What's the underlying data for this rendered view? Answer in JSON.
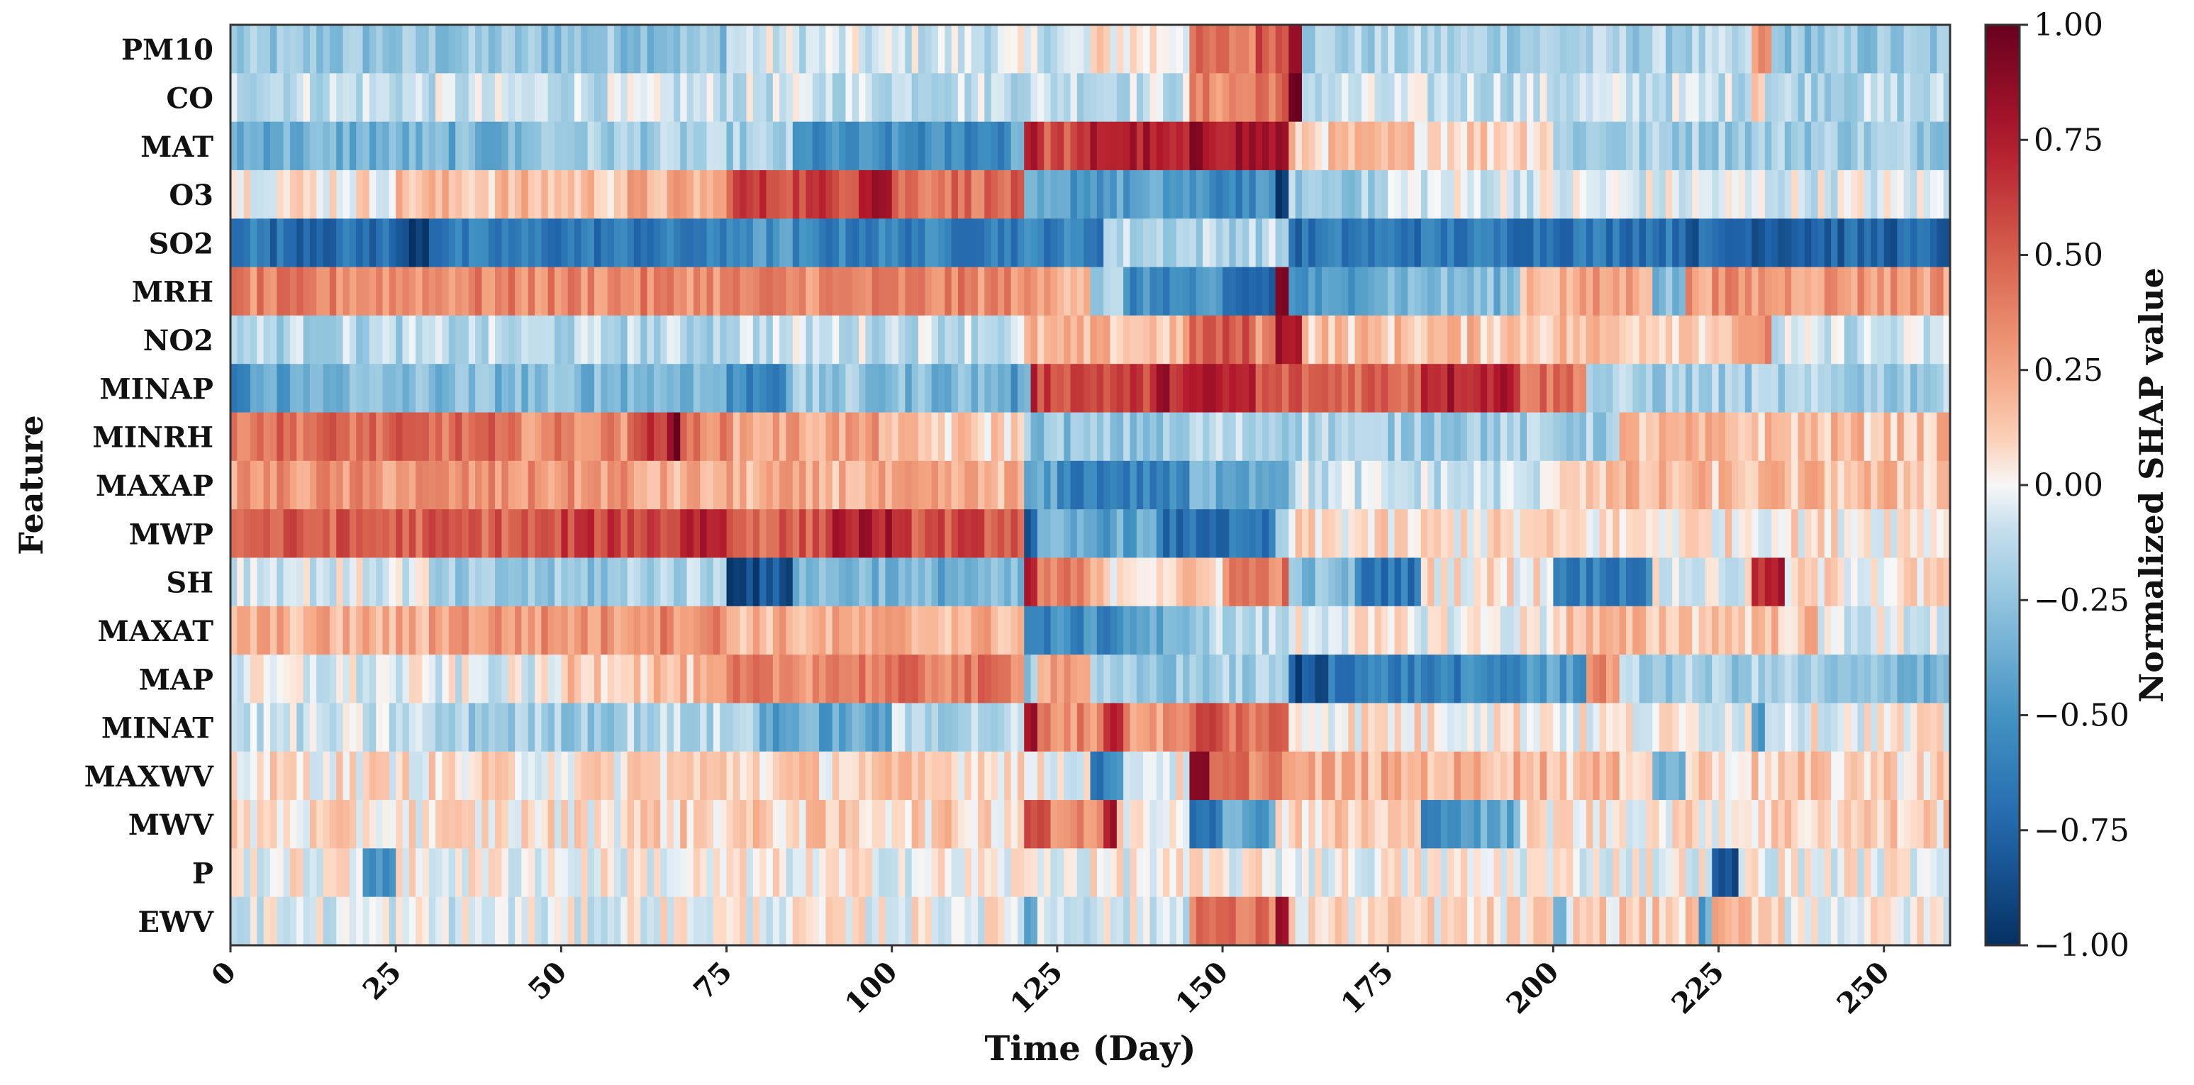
{
  "chart_data": {
    "type": "heatmap",
    "title": "",
    "xlabel": "Time (Day)",
    "ylabel": "Feature",
    "colorbar_label": "Normalized SHAP value",
    "colormap": "RdBu_r",
    "vmin": -1.0,
    "vmax": 1.0,
    "n_days": 260,
    "xlim": [
      0,
      260
    ],
    "x_ticks": [
      0,
      25,
      50,
      75,
      100,
      125,
      150,
      175,
      200,
      225,
      250
    ],
    "x_tick_labels": [
      "0",
      "25",
      "50",
      "75",
      "100",
      "125",
      "150",
      "175",
      "200",
      "225",
      "250"
    ],
    "colorbar_ticks": [
      1.0,
      0.75,
      0.5,
      0.25,
      0.0,
      -0.25,
      -0.5,
      -0.75,
      -1.0
    ],
    "colorbar_tick_labels": [
      "1.00",
      "0.75",
      "0.50",
      "0.25",
      "0.00",
      "−0.25",
      "−0.50",
      "−0.75",
      "−1.00"
    ],
    "features": [
      {
        "name": "PM10",
        "segments": [
          [
            0,
            75,
            -0.25
          ],
          [
            75,
            130,
            -0.08
          ],
          [
            130,
            145,
            0.05
          ],
          [
            145,
            155,
            0.4
          ],
          [
            155,
            160,
            0.55
          ],
          [
            160,
            162,
            0.95
          ],
          [
            162,
            230,
            -0.18
          ],
          [
            230,
            233,
            0.3
          ],
          [
            233,
            260,
            -0.25
          ]
        ]
      },
      {
        "name": "CO",
        "segments": [
          [
            0,
            145,
            -0.1
          ],
          [
            145,
            155,
            0.35
          ],
          [
            155,
            160,
            0.45
          ],
          [
            160,
            162,
            0.9
          ],
          [
            162,
            230,
            -0.1
          ],
          [
            230,
            232,
            0.2
          ],
          [
            232,
            260,
            -0.15
          ]
        ]
      },
      {
        "name": "MAT",
        "segments": [
          [
            0,
            45,
            -0.35
          ],
          [
            45,
            85,
            -0.2
          ],
          [
            85,
            118,
            -0.55
          ],
          [
            118,
            120,
            -0.3
          ],
          [
            120,
            122,
            0.8
          ],
          [
            122,
            130,
            0.55
          ],
          [
            130,
            140,
            0.75
          ],
          [
            140,
            145,
            0.65
          ],
          [
            145,
            160,
            0.8
          ],
          [
            160,
            200,
            0.12
          ],
          [
            200,
            260,
            -0.2
          ]
        ]
      },
      {
        "name": "O3",
        "segments": [
          [
            0,
            25,
            0.05
          ],
          [
            25,
            60,
            0.15
          ],
          [
            60,
            75,
            0.2
          ],
          [
            75,
            95,
            0.6
          ],
          [
            95,
            100,
            0.85
          ],
          [
            100,
            120,
            0.45
          ],
          [
            120,
            145,
            -0.45
          ],
          [
            145,
            158,
            -0.55
          ],
          [
            158,
            160,
            -1.0
          ],
          [
            160,
            175,
            -0.2
          ],
          [
            175,
            260,
            -0.05
          ]
        ]
      },
      {
        "name": "SO2",
        "segments": [
          [
            0,
            5,
            -0.6
          ],
          [
            5,
            25,
            -0.7
          ],
          [
            25,
            30,
            -0.9
          ],
          [
            30,
            75,
            -0.65
          ],
          [
            75,
            85,
            -0.5
          ],
          [
            85,
            132,
            -0.6
          ],
          [
            132,
            160,
            -0.15
          ],
          [
            160,
            165,
            -0.7
          ],
          [
            165,
            220,
            -0.65
          ],
          [
            220,
            260,
            -0.75
          ]
        ]
      },
      {
        "name": "MRH",
        "segments": [
          [
            0,
            120,
            0.35
          ],
          [
            120,
            130,
            0.25
          ],
          [
            130,
            135,
            -0.2
          ],
          [
            135,
            150,
            -0.55
          ],
          [
            150,
            158,
            -0.75
          ],
          [
            158,
            160,
            0.9
          ],
          [
            160,
            170,
            -0.5
          ],
          [
            170,
            195,
            -0.3
          ],
          [
            195,
            205,
            0.2
          ],
          [
            205,
            215,
            0.25
          ],
          [
            215,
            220,
            -0.3
          ],
          [
            220,
            260,
            0.3
          ]
        ]
      },
      {
        "name": "NO2",
        "segments": [
          [
            0,
            75,
            -0.15
          ],
          [
            75,
            120,
            -0.1
          ],
          [
            120,
            145,
            0.15
          ],
          [
            145,
            155,
            0.5
          ],
          [
            155,
            158,
            0.35
          ],
          [
            158,
            162,
            0.85
          ],
          [
            162,
            230,
            0.15
          ],
          [
            230,
            233,
            0.35
          ],
          [
            233,
            260,
            -0.1
          ]
        ]
      },
      {
        "name": "MINAP",
        "segments": [
          [
            0,
            3,
            -0.6
          ],
          [
            3,
            12,
            -0.4
          ],
          [
            12,
            75,
            -0.3
          ],
          [
            75,
            84,
            -0.55
          ],
          [
            84,
            95,
            -0.25
          ],
          [
            95,
            117,
            -0.3
          ],
          [
            117,
            121,
            -0.45
          ],
          [
            121,
            122,
            0.9
          ],
          [
            122,
            140,
            0.6
          ],
          [
            140,
            145,
            0.75
          ],
          [
            145,
            155,
            0.7
          ],
          [
            155,
            160,
            0.5
          ],
          [
            160,
            180,
            0.5
          ],
          [
            180,
            195,
            0.75
          ],
          [
            195,
            205,
            0.45
          ],
          [
            205,
            260,
            -0.2
          ]
        ]
      },
      {
        "name": "MINRH",
        "segments": [
          [
            0,
            40,
            0.45
          ],
          [
            40,
            60,
            0.35
          ],
          [
            60,
            66,
            0.6
          ],
          [
            66,
            68,
            0.95
          ],
          [
            68,
            75,
            0.4
          ],
          [
            75,
            100,
            0.25
          ],
          [
            100,
            120,
            0.1
          ],
          [
            120,
            145,
            -0.25
          ],
          [
            145,
            170,
            -0.15
          ],
          [
            170,
            210,
            -0.2
          ],
          [
            210,
            260,
            0.15
          ]
        ]
      },
      {
        "name": "MAXAP",
        "segments": [
          [
            0,
            60,
            0.3
          ],
          [
            60,
            120,
            0.2
          ],
          [
            120,
            125,
            -0.45
          ],
          [
            125,
            145,
            -0.6
          ],
          [
            145,
            160,
            -0.35
          ],
          [
            160,
            200,
            -0.1
          ],
          [
            200,
            260,
            0.15
          ]
        ]
      },
      {
        "name": "MWP",
        "segments": [
          [
            0,
            50,
            0.5
          ],
          [
            50,
            68,
            0.6
          ],
          [
            68,
            75,
            0.75
          ],
          [
            75,
            90,
            0.5
          ],
          [
            90,
            100,
            0.75
          ],
          [
            100,
            120,
            0.55
          ],
          [
            120,
            122,
            -0.85
          ],
          [
            122,
            140,
            -0.4
          ],
          [
            140,
            158,
            -0.7
          ],
          [
            158,
            160,
            -0.2
          ],
          [
            160,
            260,
            0.05
          ]
        ]
      },
      {
        "name": "SH",
        "segments": [
          [
            0,
            30,
            -0.05
          ],
          [
            30,
            60,
            -0.25
          ],
          [
            60,
            75,
            -0.15
          ],
          [
            75,
            85,
            -0.85
          ],
          [
            85,
            100,
            -0.3
          ],
          [
            100,
            120,
            -0.35
          ],
          [
            120,
            122,
            0.7
          ],
          [
            122,
            130,
            0.35
          ],
          [
            130,
            150,
            0.1
          ],
          [
            150,
            160,
            0.4
          ],
          [
            160,
            170,
            -0.3
          ],
          [
            170,
            180,
            -0.65
          ],
          [
            180,
            200,
            0.05
          ],
          [
            200,
            215,
            -0.6
          ],
          [
            215,
            230,
            -0.05
          ],
          [
            230,
            235,
            0.7
          ],
          [
            235,
            260,
            0.05
          ]
        ]
      },
      {
        "name": "MAXAT",
        "segments": [
          [
            0,
            30,
            0.2
          ],
          [
            30,
            60,
            0.3
          ],
          [
            60,
            75,
            0.35
          ],
          [
            75,
            120,
            0.2
          ],
          [
            120,
            125,
            -0.6
          ],
          [
            125,
            135,
            -0.55
          ],
          [
            135,
            145,
            -0.4
          ],
          [
            145,
            160,
            -0.15
          ],
          [
            160,
            200,
            0.0
          ],
          [
            200,
            240,
            0.15
          ],
          [
            240,
            260,
            -0.05
          ]
        ]
      },
      {
        "name": "MAP",
        "segments": [
          [
            0,
            50,
            -0.05
          ],
          [
            50,
            75,
            0.15
          ],
          [
            75,
            88,
            0.35
          ],
          [
            88,
            120,
            0.4
          ],
          [
            120,
            122,
            -0.2
          ],
          [
            122,
            130,
            0.3
          ],
          [
            130,
            145,
            -0.25
          ],
          [
            145,
            160,
            -0.2
          ],
          [
            160,
            166,
            -0.85
          ],
          [
            166,
            195,
            -0.6
          ],
          [
            195,
            205,
            -0.45
          ],
          [
            205,
            210,
            0.35
          ],
          [
            210,
            240,
            -0.2
          ],
          [
            240,
            260,
            -0.3
          ]
        ]
      },
      {
        "name": "MINAT",
        "segments": [
          [
            0,
            30,
            -0.1
          ],
          [
            30,
            60,
            -0.2
          ],
          [
            60,
            80,
            -0.15
          ],
          [
            80,
            100,
            -0.4
          ],
          [
            100,
            120,
            -0.15
          ],
          [
            120,
            122,
            0.8
          ],
          [
            122,
            132,
            0.35
          ],
          [
            132,
            135,
            0.75
          ],
          [
            135,
            145,
            0.3
          ],
          [
            145,
            150,
            0.55
          ],
          [
            150,
            160,
            0.45
          ],
          [
            160,
            200,
            0.05
          ],
          [
            200,
            230,
            0.0
          ],
          [
            230,
            232,
            -0.45
          ],
          [
            232,
            260,
            0.0
          ]
        ]
      },
      {
        "name": "MAXWV",
        "segments": [
          [
            0,
            60,
            0.05
          ],
          [
            60,
            120,
            0.1
          ],
          [
            120,
            130,
            0.0
          ],
          [
            130,
            135,
            -0.6
          ],
          [
            135,
            145,
            0.0
          ],
          [
            145,
            148,
            0.8
          ],
          [
            148,
            160,
            0.4
          ],
          [
            160,
            200,
            0.2
          ],
          [
            200,
            215,
            0.15
          ],
          [
            215,
            220,
            -0.35
          ],
          [
            220,
            260,
            0.1
          ]
        ]
      },
      {
        "name": "MWV",
        "segments": [
          [
            0,
            60,
            0.05
          ],
          [
            60,
            120,
            0.1
          ],
          [
            120,
            124,
            0.6
          ],
          [
            124,
            132,
            0.3
          ],
          [
            132,
            134,
            0.8
          ],
          [
            134,
            145,
            0.05
          ],
          [
            145,
            150,
            -0.6
          ],
          [
            150,
            158,
            -0.4
          ],
          [
            158,
            180,
            0.1
          ],
          [
            180,
            183,
            -0.7
          ],
          [
            183,
            195,
            -0.4
          ],
          [
            195,
            230,
            0.05
          ],
          [
            230,
            260,
            0.1
          ]
        ]
      },
      {
        "name": "P",
        "segments": [
          [
            0,
            20,
            0.0
          ],
          [
            20,
            25,
            -0.45
          ],
          [
            25,
            224,
            0.0
          ],
          [
            224,
            228,
            -0.9
          ],
          [
            228,
            260,
            0.0
          ]
        ]
      },
      {
        "name": "EWV",
        "segments": [
          [
            0,
            60,
            -0.05
          ],
          [
            60,
            120,
            0.0
          ],
          [
            120,
            122,
            -0.4
          ],
          [
            122,
            145,
            -0.05
          ],
          [
            145,
            150,
            0.45
          ],
          [
            150,
            158,
            0.4
          ],
          [
            158,
            160,
            0.9
          ],
          [
            160,
            200,
            0.05
          ],
          [
            200,
            202,
            -0.45
          ],
          [
            202,
            222,
            0.1
          ],
          [
            222,
            224,
            -0.4
          ],
          [
            224,
            235,
            0.15
          ],
          [
            235,
            260,
            0.0
          ]
        ]
      }
    ]
  }
}
